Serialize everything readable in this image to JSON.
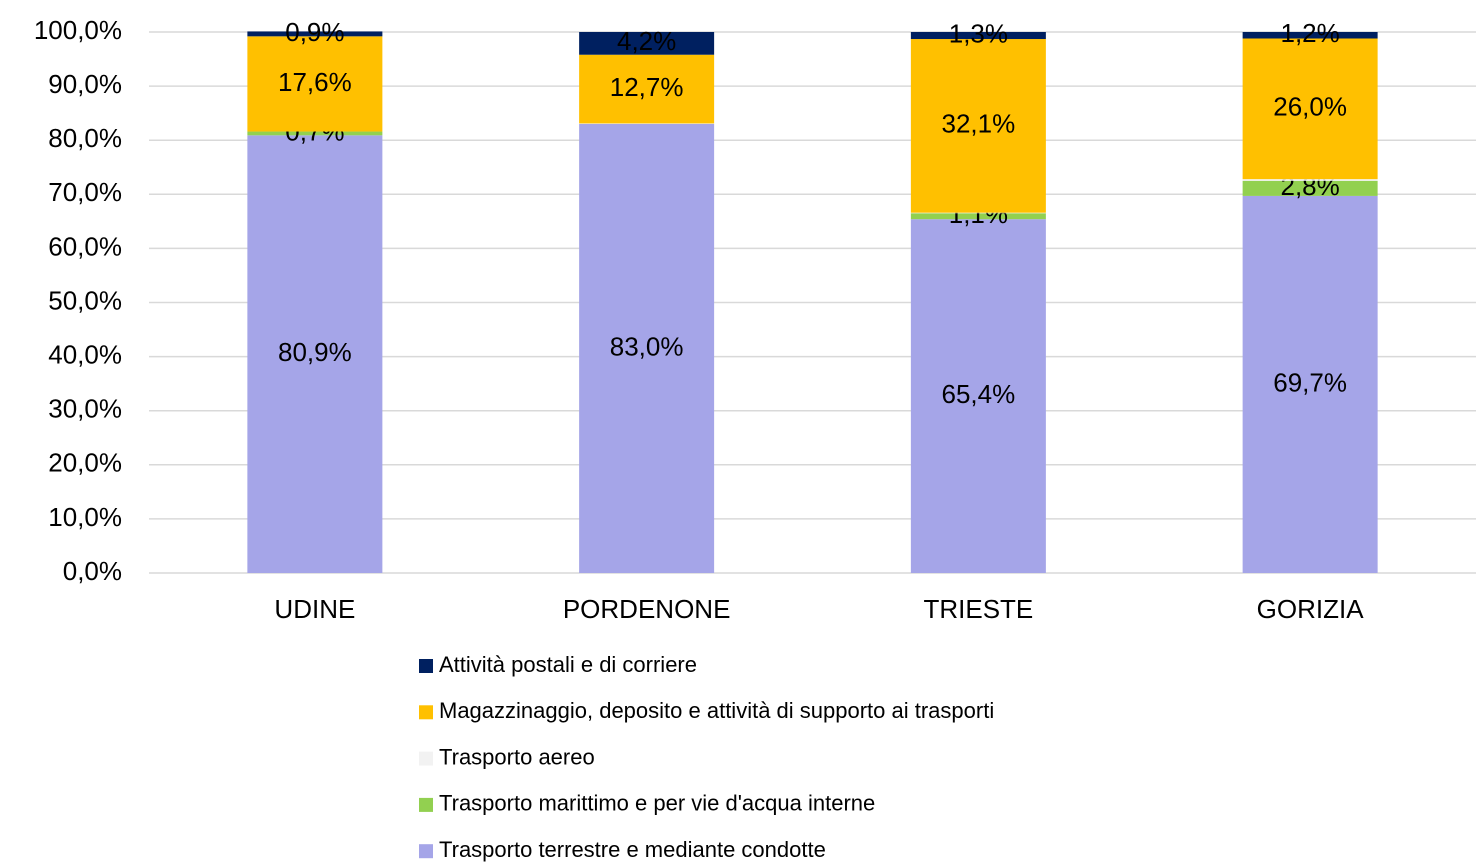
{
  "chart_data": {
    "type": "stacked_bar",
    "categories": [
      "UDINE",
      "PORDENONE",
      "TRIESTE",
      "GORIZIA"
    ],
    "series": [
      {
        "name": "Trasporto terrestre e mediante condotte",
        "color": "#a5a5e8",
        "values": [
          80.9,
          83.0,
          65.4,
          69.7
        ],
        "value_labels": [
          "80,9%",
          "83,0%",
          "65,4%",
          "69,7%"
        ]
      },
      {
        "name": "Trasporto marittimo e per vie d'acqua interne",
        "color": "#92d050",
        "values": [
          0.7,
          0,
          1.1,
          2.8
        ],
        "value_labels": [
          "0,7%",
          null,
          "1,1%",
          "2,8%"
        ]
      },
      {
        "name": "Trasporto aereo",
        "color": "#f2f2f2",
        "values": [
          0,
          0.1,
          0.1,
          0.3
        ]
      },
      {
        "name": "Magazzinaggio, deposito e attività di supporto ai trasporti",
        "color": "#ffc000",
        "values": [
          17.6,
          12.7,
          32.1,
          26.0
        ],
        "value_labels": [
          "17,6%",
          "12,7%",
          "32,1%",
          "26,0%"
        ]
      },
      {
        "name": "Attività postali e di corriere",
        "color": "#002060",
        "values": [
          0.9,
          4.2,
          1.3,
          1.2
        ],
        "value_labels": [
          "0,9%",
          "4,2%",
          "1,3%",
          "1,2%"
        ]
      }
    ],
    "ylim": [
      0,
      100
    ],
    "yticks": [
      {
        "value": 0,
        "label": "0,0%"
      },
      {
        "value": 10,
        "label": "10,0%"
      },
      {
        "value": 20,
        "label": "20,0%"
      },
      {
        "value": 30,
        "label": "30,0%"
      },
      {
        "value": 40,
        "label": "40,0%"
      },
      {
        "value": 50,
        "label": "50,0%"
      },
      {
        "value": 60,
        "label": "60,0%"
      },
      {
        "value": 70,
        "label": "70,0%"
      },
      {
        "value": 80,
        "label": "80,0%"
      },
      {
        "value": 90,
        "label": "90,0%"
      },
      {
        "value": 100,
        "label": "100,0%"
      }
    ],
    "grid": true,
    "legend": "bottom"
  }
}
